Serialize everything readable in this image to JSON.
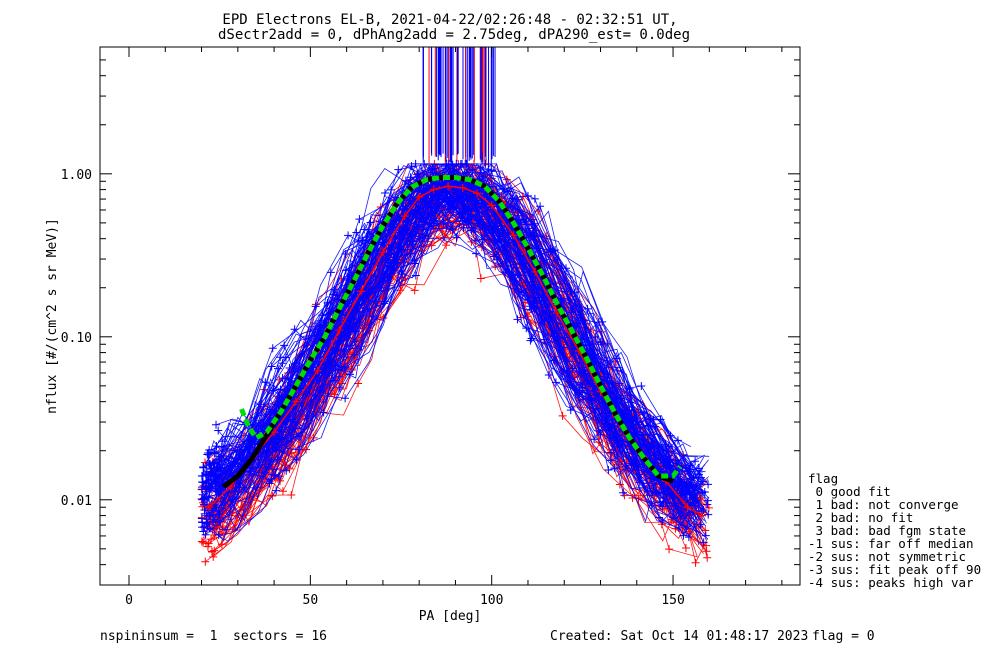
{
  "chart_data": {
    "type": "line",
    "title": "EPD Electrons EL-B, 2021-04-22/02:26:48 - 02:32:51 UT,",
    "subtitle": "dSectr2add = 0, dPhAng2add = 2.75deg, dPA290_est=   0.0deg",
    "xlabel": "PA [deg]",
    "ylabel": "nflux [#/(cm^2 s sr MeV)]",
    "xlim": [
      -8,
      185
    ],
    "ylim": [
      0.003,
      6.0
    ],
    "yscale": "log",
    "grid": false,
    "x_ticks": [
      {
        "v": 0,
        "label": "0"
      },
      {
        "v": 50,
        "label": "50"
      },
      {
        "v": 100,
        "label": "100"
      },
      {
        "v": 150,
        "label": "150"
      }
    ],
    "y_ticks": [
      {
        "v": 0.01,
        "label": "0.01"
      },
      {
        "v": 0.1,
        "label": "0.10"
      },
      {
        "v": 1.0,
        "label": "1.00"
      }
    ],
    "series": [
      {
        "color": "#0000ff",
        "x": [
          22,
          28,
          34,
          40,
          46,
          52,
          58,
          64,
          70,
          76,
          80,
          84,
          88,
          92,
          96,
          100,
          106,
          112,
          118,
          124,
          130,
          136,
          142,
          148,
          154,
          158
        ],
        "y": [
          0.012,
          0.016,
          0.022,
          0.032,
          0.048,
          0.075,
          0.13,
          0.22,
          0.38,
          0.6,
          0.78,
          0.86,
          0.9,
          0.88,
          0.82,
          0.7,
          0.46,
          0.28,
          0.16,
          0.095,
          0.055,
          0.034,
          0.022,
          0.016,
          0.012,
          0.011
        ]
      },
      {
        "color": "#ff0000",
        "x": [
          22,
          28,
          34,
          40,
          46,
          52,
          58,
          64,
          70,
          76,
          80,
          84,
          88,
          92,
          96,
          100,
          106,
          112,
          118,
          124,
          130,
          136,
          142,
          148,
          154,
          158
        ],
        "y": [
          0.009,
          0.012,
          0.018,
          0.026,
          0.04,
          0.062,
          0.11,
          0.19,
          0.33,
          0.55,
          0.72,
          0.8,
          0.84,
          0.82,
          0.76,
          0.64,
          0.42,
          0.25,
          0.14,
          0.082,
          0.046,
          0.028,
          0.018,
          0.013,
          0.009,
          0.008
        ]
      },
      {
        "color": "#000000",
        "x": [
          26,
          30,
          34,
          38,
          42,
          46,
          50,
          54,
          58,
          62,
          66,
          70,
          74,
          78,
          82,
          86,
          90,
          94,
          98,
          102,
          106,
          110,
          114,
          118,
          122,
          126,
          130,
          134,
          138,
          142,
          146,
          150
        ],
        "y": [
          0.012,
          0.014,
          0.018,
          0.025,
          0.035,
          0.05,
          0.072,
          0.1,
          0.15,
          0.22,
          0.33,
          0.48,
          0.66,
          0.83,
          0.92,
          0.95,
          0.95,
          0.92,
          0.84,
          0.68,
          0.5,
          0.35,
          0.24,
          0.16,
          0.11,
          0.075,
          0.05,
          0.034,
          0.024,
          0.018,
          0.014,
          0.013
        ]
      },
      {
        "color": "#00dd00",
        "x": [
          31,
          33,
          35,
          38,
          42,
          46,
          50,
          54,
          58,
          62,
          66,
          70,
          74,
          78,
          82,
          86,
          90,
          94,
          98,
          102,
          106,
          110,
          114,
          118,
          122,
          126,
          130,
          134,
          138,
          142,
          146,
          150,
          152
        ],
        "y": [
          0.036,
          0.028,
          0.024,
          0.026,
          0.035,
          0.05,
          0.072,
          0.1,
          0.15,
          0.22,
          0.33,
          0.48,
          0.66,
          0.83,
          0.92,
          0.95,
          0.95,
          0.92,
          0.84,
          0.68,
          0.5,
          0.35,
          0.24,
          0.16,
          0.11,
          0.075,
          0.05,
          0.034,
          0.024,
          0.018,
          0.014,
          0.014,
          0.016
        ]
      }
    ]
  },
  "legend": {
    "title": "flag",
    "items": [
      " 0 good fit",
      " 1 bad: not converge",
      " 2 bad: no fit",
      " 3 bad: bad fgm state",
      "-1 sus: far off median",
      "-2 sus: not symmetric",
      "-3 sus: fit peak off 90",
      "-4 sus: peaks high var"
    ]
  },
  "footer": {
    "left": "nspininsum =  1  sectors = 16",
    "created": "Created: Sat Oct 14 01:48:17 2023",
    "flag": "flag = 0"
  }
}
